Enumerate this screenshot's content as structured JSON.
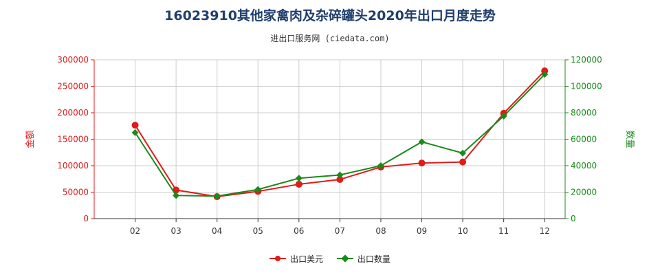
{
  "title": "16023910其他家禽肉及杂碎罐头2020年出口月度走势",
  "subtitle": "进出口服务网 (ciedata.com)",
  "colors": {
    "amount": "#e11a1a",
    "quantity": "#1a8a1a",
    "grid": "#cccccc",
    "axis": "#333333"
  },
  "chart_data": {
    "type": "line",
    "categories": [
      "02",
      "03",
      "04",
      "05",
      "06",
      "07",
      "08",
      "09",
      "10",
      "11",
      "12"
    ],
    "series": [
      {
        "name": "出口美元",
        "axis": "left",
        "values": [
          176500,
          54000,
          41500,
          51500,
          65000,
          74000,
          97500,
          105000,
          107000,
          199000,
          279000
        ]
      },
      {
        "name": "出口数量",
        "axis": "right",
        "values": [
          65000,
          17500,
          17000,
          22000,
          30500,
          33000,
          40000,
          58000,
          49500,
          77500,
          109000
        ]
      }
    ],
    "yleft": {
      "label": "金额",
      "ylim": [
        0,
        300000
      ],
      "ticks": [
        0,
        50000,
        100000,
        150000,
        200000,
        250000,
        300000
      ]
    },
    "yright": {
      "label": "数量",
      "ylim": [
        0,
        120000
      ],
      "ticks": [
        0,
        20000,
        40000,
        60000,
        80000,
        100000,
        120000
      ]
    },
    "grid": true,
    "legend": "bottom-center"
  }
}
